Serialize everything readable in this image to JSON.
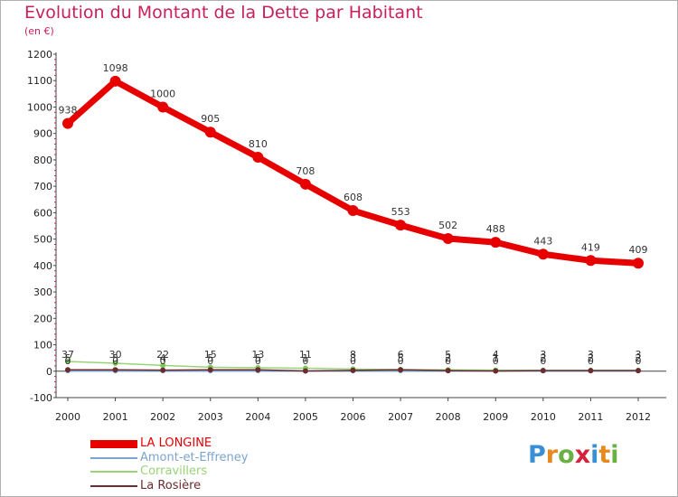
{
  "title": "Evolution du Montant de la Dette par Habitant",
  "subtitle": "(en €)",
  "logo": {
    "text": "Proxiti",
    "letters": [
      {
        "ch": "P",
        "color": "#3a8fd4"
      },
      {
        "ch": "r",
        "color": "#e8891e"
      },
      {
        "ch": "o",
        "color": "#6ab042"
      },
      {
        "ch": "x",
        "color": "#d4233c"
      },
      {
        "ch": "i",
        "color": "#3a8fd4"
      },
      {
        "ch": "t",
        "color": "#e8891e"
      },
      {
        "ch": "i",
        "color": "#6ab042"
      }
    ]
  },
  "chart_data": {
    "type": "line",
    "title": "Evolution du Montant de la Dette par Habitant",
    "ylabel": "(en €)",
    "xlabel": "",
    "ylim": [
      -100,
      1200
    ],
    "yticks": [
      -100,
      0,
      100,
      200,
      300,
      400,
      500,
      600,
      700,
      800,
      900,
      1000,
      1100,
      1200
    ],
    "categories": [
      "2000",
      "2001",
      "2002",
      "2003",
      "2004",
      "2005",
      "2006",
      "2007",
      "2008",
      "2009",
      "2010",
      "2011",
      "2012"
    ],
    "grid": false,
    "legend_position": "bottom-left",
    "series": [
      {
        "name": "LA LONGINE",
        "color": "#e60000",
        "bold": true,
        "values": [
          938,
          1098,
          1000,
          905,
          810,
          708,
          608,
          553,
          502,
          488,
          443,
          419,
          409
        ]
      },
      {
        "name": "Amont-et-Effreney",
        "color": "#7ba4cf",
        "bold": false,
        "values": [
          0,
          0,
          0,
          0,
          0,
          0,
          0,
          0,
          0,
          0,
          0,
          0,
          0
        ]
      },
      {
        "name": "Corravillers",
        "color": "#98d477",
        "bold": false,
        "values": [
          37,
          30,
          22,
          15,
          13,
          11,
          8,
          6,
          5,
          4,
          3,
          3,
          3
        ]
      },
      {
        "name": "La Rosière",
        "color": "#6b2b30",
        "bold": false,
        "values": [
          5,
          5,
          4,
          5,
          5,
          1,
          3,
          5,
          2,
          1,
          2,
          2,
          2
        ]
      }
    ]
  }
}
